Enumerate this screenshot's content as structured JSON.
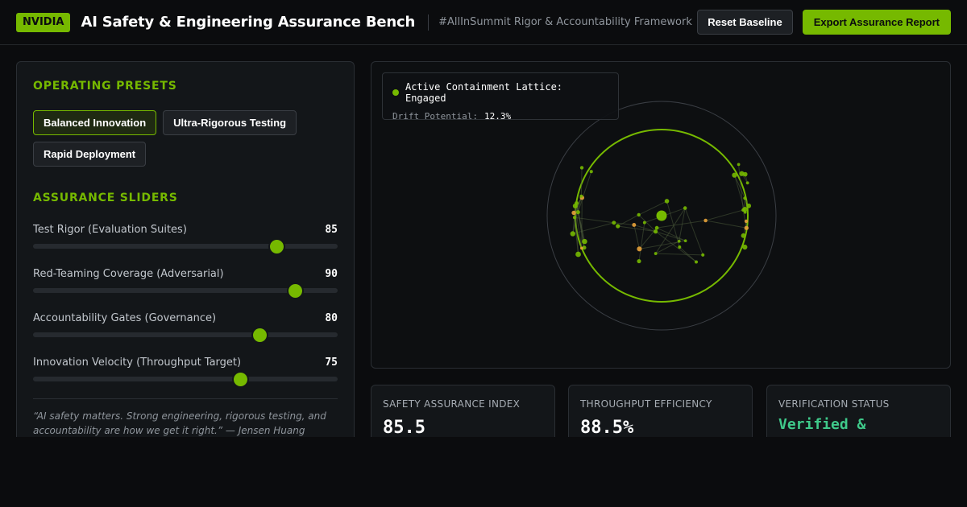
{
  "header": {
    "brand": "NVIDIA",
    "title": "AI Safety & Engineering Assurance Bench",
    "tagline": "#AllInSummit Rigor & Accountability Framework",
    "reset_label": "Reset Baseline",
    "export_label": "Export Assurance Report"
  },
  "presets": {
    "title": "OPERATING PRESETS",
    "items": [
      {
        "label": "Balanced Innovation",
        "active": true
      },
      {
        "label": "Ultra-Rigorous Testing",
        "active": false
      },
      {
        "label": "Rapid Deployment",
        "active": false
      }
    ]
  },
  "sliders": {
    "title": "ASSURANCE SLIDERS",
    "max": 100,
    "items": [
      {
        "label": "Test Rigor (Evaluation Suites)",
        "value": "85",
        "level": 0.8
      },
      {
        "label": "Red-Teaming Coverage (Adversarial)",
        "value": "90",
        "level": 0.86
      },
      {
        "label": "Accountability Gates (Governance)",
        "value": "80",
        "level": 0.745
      },
      {
        "label": "Innovation Velocity (Throughput Target)",
        "value": "75",
        "level": 0.68
      }
    ]
  },
  "quote": "“AI safety matters. Strong engineering, rigorous testing, and accountability are how we get it right.” — Jensen Huang (@nvidia, #AllInSummit)",
  "visualization": {
    "status_label": "Active Containment Lattice: Engaged",
    "drift_label": "Drift Potential:",
    "drift_value": "12.3%",
    "accent": "#76b900",
    "warn": "#e8a23a"
  },
  "metrics": [
    {
      "label": "SAFETY ASSURANCE INDEX",
      "value": "85.5"
    },
    {
      "label": "THROUGHPUT EFFICIENCY",
      "value": "88.5%"
    },
    {
      "label": "VERIFICATION STATUS",
      "value": "Verified &"
    }
  ],
  "colors": {
    "accent": "#76b900",
    "status_good": "#3fc98a",
    "background": "#0b0c0e"
  }
}
